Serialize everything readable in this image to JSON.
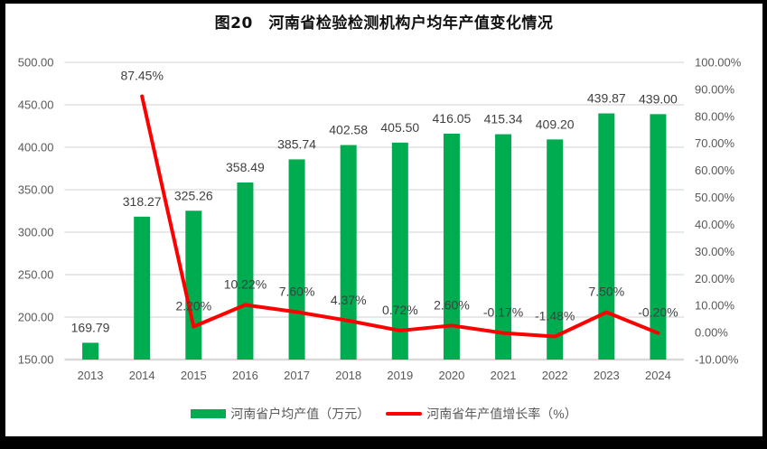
{
  "title": "图20　河南省检验检测机构户均年产值变化情况",
  "colors": {
    "bar": "#00AC50",
    "line": "#FF0000",
    "grid": "#D9D9D9",
    "tick_text": "#595959",
    "label_text": "#3F3F3F",
    "title_text": "#111111",
    "background": "#FFFFFF",
    "border": "#000000"
  },
  "legend": [
    {
      "label": "河南省户均产值（万元）",
      "series": "bar"
    },
    {
      "label": "河南省年产值增长率（%）",
      "series": "line"
    }
  ],
  "chart_data": {
    "type": "combo",
    "title": "图20　河南省检验检测机构户均年产值变化情况",
    "categories": [
      "2013",
      "2014",
      "2015",
      "2016",
      "2017",
      "2018",
      "2019",
      "2020",
      "2021",
      "2022",
      "2023",
      "2024"
    ],
    "series": [
      {
        "name": "河南省户均产值（万元）",
        "type": "bar",
        "axis": "left",
        "values": [
          169.79,
          318.27,
          325.26,
          358.49,
          385.74,
          402.58,
          405.5,
          416.05,
          415.34,
          409.2,
          439.87,
          439.0
        ],
        "labels": [
          "169.79",
          "318.27",
          "325.26",
          "358.49",
          "385.74",
          "402.58",
          "405.50",
          "416.05",
          "415.34",
          "409.20",
          "439.87",
          "439.00"
        ]
      },
      {
        "name": "河南省年产值增长率（%）",
        "type": "line",
        "axis": "right",
        "values": [
          null,
          87.45,
          2.2,
          10.22,
          7.6,
          4.37,
          0.72,
          2.6,
          -0.17,
          -1.48,
          7.5,
          -0.2
        ],
        "labels": [
          "",
          "87.45%",
          "2.20%",
          "10.22%",
          "7.60%",
          "4.37%",
          "0.72%",
          "2.60%",
          "-0.17%",
          "-1.48%",
          "7.50%",
          "-0.20%"
        ]
      }
    ],
    "left_axis": {
      "min": 150,
      "max": 500,
      "tick_step": 50,
      "ticks": [
        "500.00",
        "450.00",
        "400.00",
        "350.00",
        "300.00",
        "250.00",
        "200.00",
        "150.00"
      ]
    },
    "right_axis": {
      "min": -10,
      "max": 100,
      "tick_step": 10,
      "ticks": [
        "100.00%",
        "90.00%",
        "80.00%",
        "70.00%",
        "60.00%",
        "50.00%",
        "40.00%",
        "30.00%",
        "20.00%",
        "10.00%",
        "0.00%",
        "-10.00%"
      ]
    },
    "grid": "horizontal",
    "legend_position": "bottom"
  }
}
